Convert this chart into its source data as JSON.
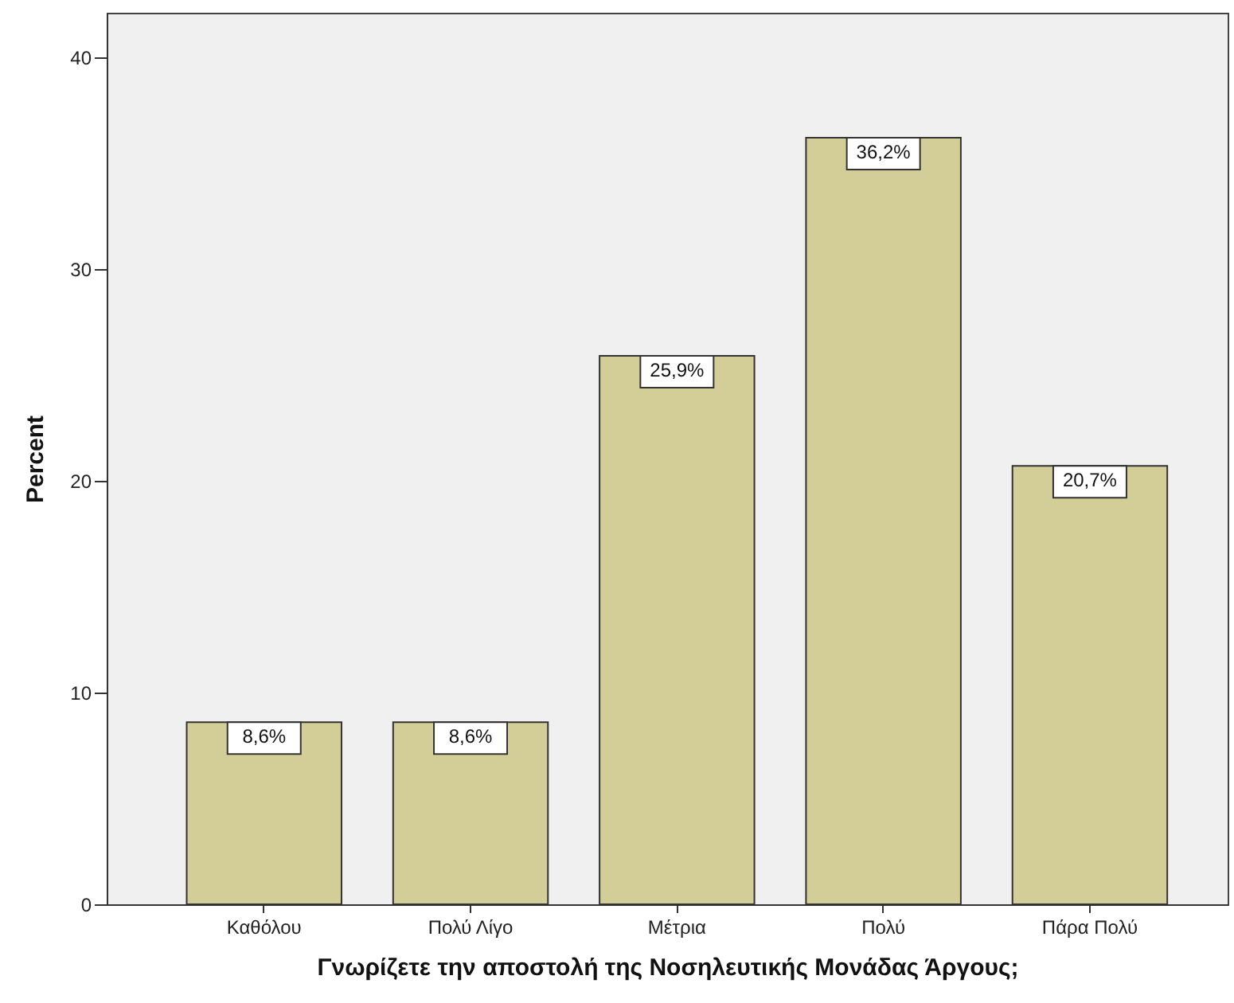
{
  "chart_data": {
    "type": "bar",
    "xlabel": "Γνωρίζετε την αποστολή της Νοσηλευτικής Μονάδας Άργους;",
    "ylabel": "Percent",
    "categories": [
      "Καθόλου",
      "Πολύ Λίγο",
      "Μέτρια",
      "Πολύ",
      "Πάρα Πολύ"
    ],
    "values": [
      8.6,
      8.6,
      25.9,
      36.2,
      20.7
    ],
    "color": "#d3ce97",
    "value_labels": [
      "8,6%",
      "8,6%",
      "25,9%",
      "36,2%",
      "20,7%"
    ],
    "ylim": [
      0,
      42.1
    ],
    "yticks": [
      0,
      10,
      20,
      30,
      40
    ]
  }
}
